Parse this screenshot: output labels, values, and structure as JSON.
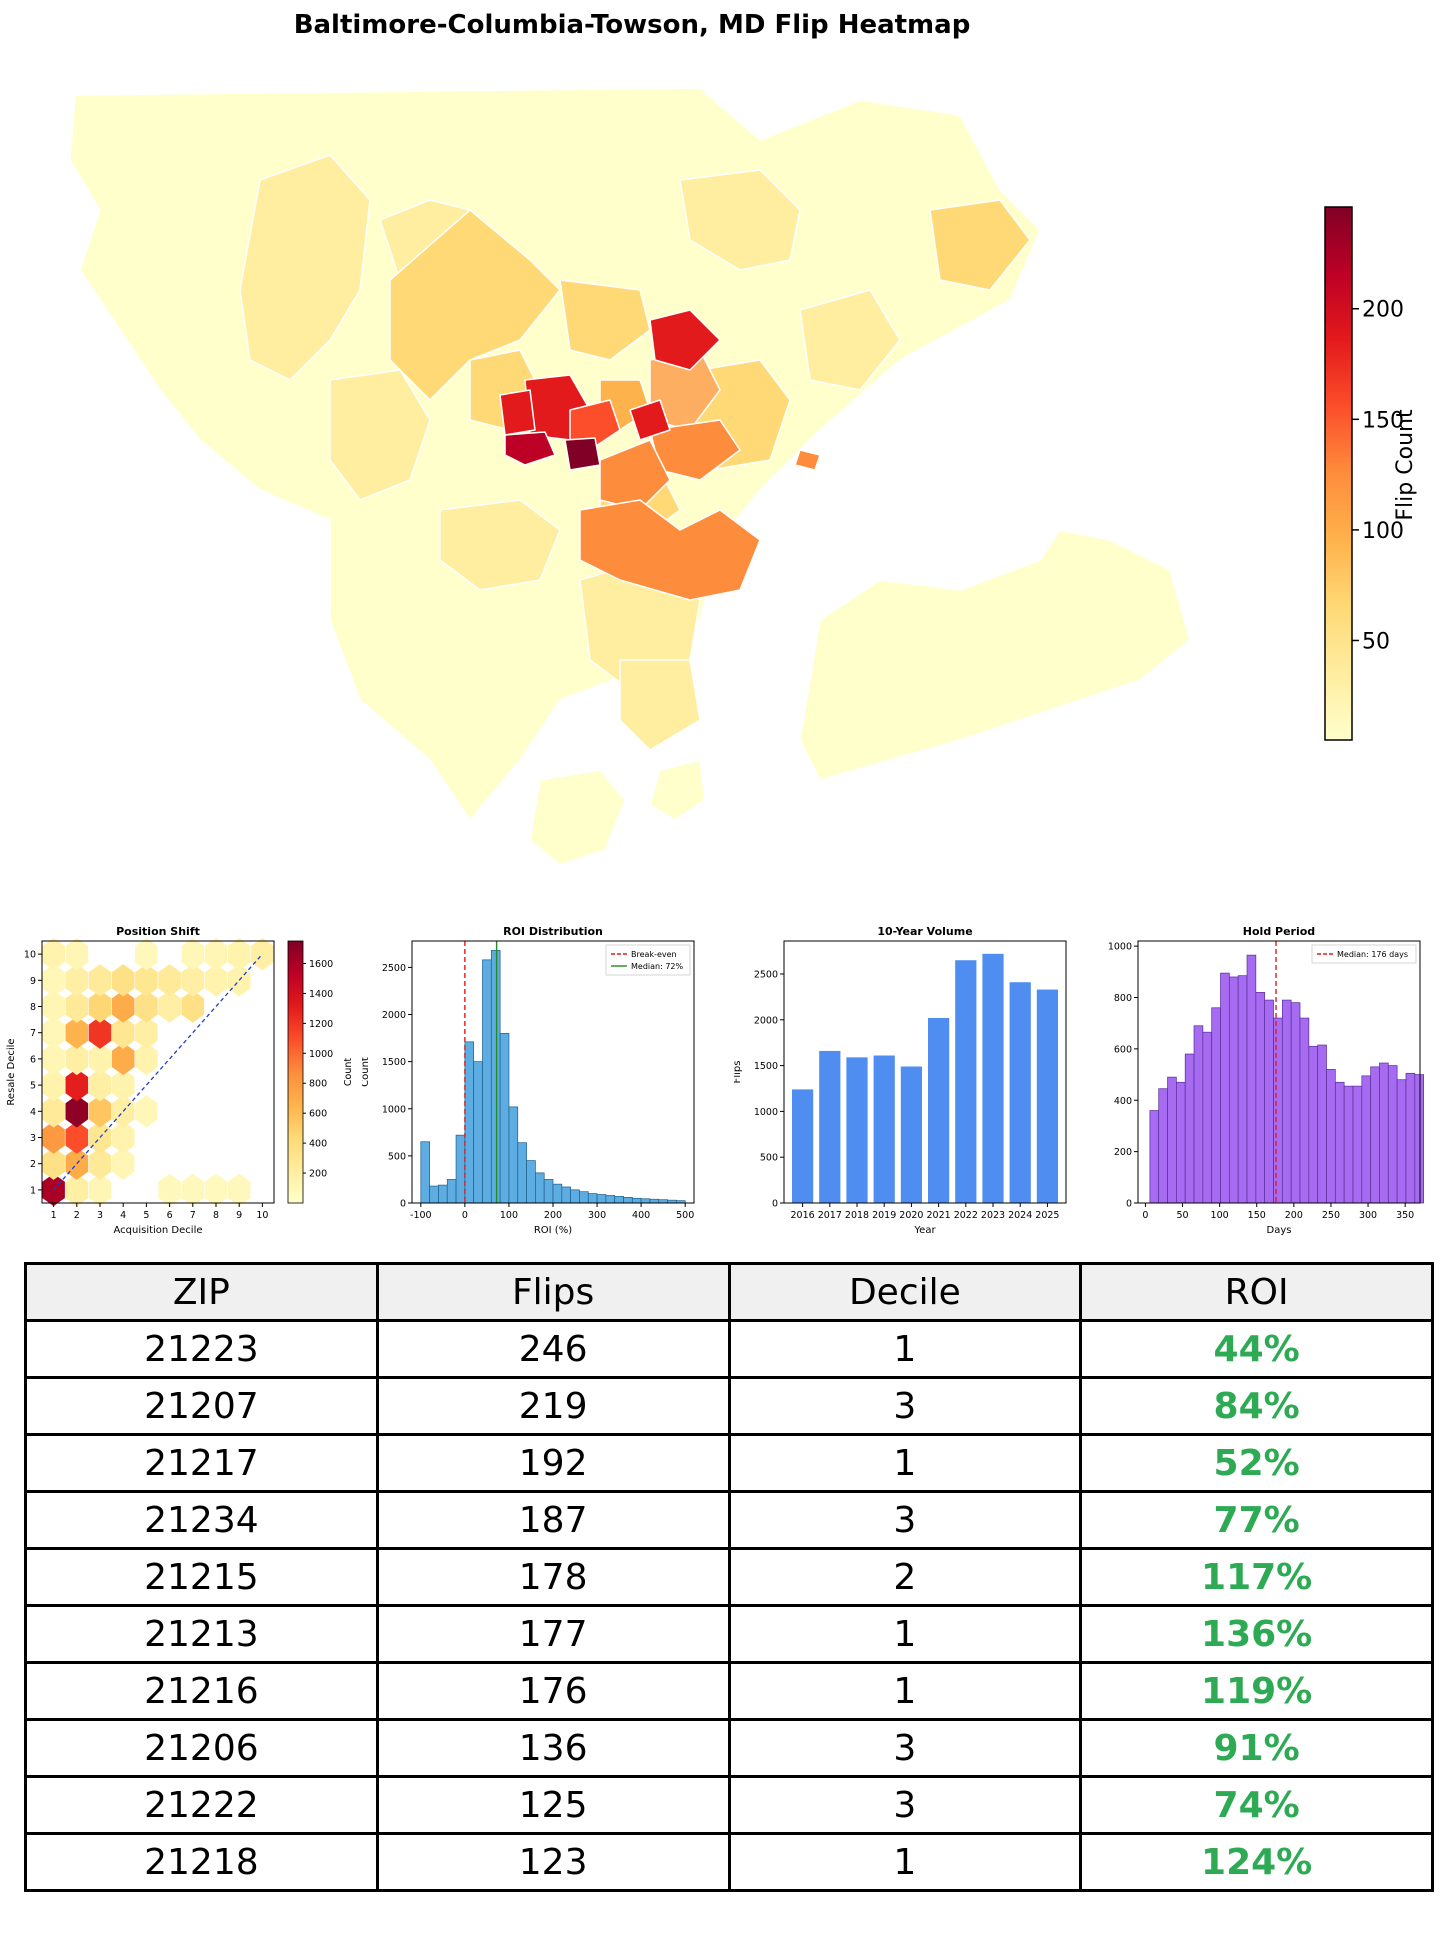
{
  "title": "Baltimore-Columbia-Towson, MD Flip Heatmap",
  "colors": {
    "heat": [
      "#ffffcc",
      "#ffeda0",
      "#fed976",
      "#feb24c",
      "#fd8d3c",
      "#fc4e2a",
      "#e31a1c",
      "#bd0026",
      "#800026"
    ],
    "roi_hist": "#5dade2",
    "volume_bars": "#4f8ef0",
    "hold_bars": "#a66bf0",
    "roi_text": "#2eaa55"
  },
  "map": {
    "colorbar_label": "Flip Count",
    "colorbar_ticks": [
      50,
      100,
      150,
      200
    ],
    "colorbar_range": [
      5,
      246
    ]
  },
  "chart_data": [
    {
      "type": "heatmap",
      "title": "Position Shift",
      "xlabel": "Acquisition Decile",
      "ylabel": "Resale Decile",
      "xlim": [
        0.5,
        10.5
      ],
      "ylim": [
        0.5,
        10.5
      ],
      "xticks": [
        1,
        2,
        3,
        4,
        5,
        6,
        7,
        8,
        9,
        10
      ],
      "yticks": [
        1,
        2,
        3,
        4,
        5,
        6,
        7,
        8,
        9,
        10
      ],
      "colorbar_label": "Count",
      "colorbar_ticks": [
        200,
        400,
        600,
        800,
        1000,
        1200,
        1400,
        1600
      ],
      "colorbar_range": [
        0,
        1750
      ],
      "diagonal": [
        [
          1,
          1
        ],
        [
          10,
          10
        ]
      ],
      "cells": [
        {
          "x": 1,
          "y": 1,
          "v": 1600
        },
        {
          "x": 2,
          "y": 1,
          "v": 200
        },
        {
          "x": 3,
          "y": 1,
          "v": 120
        },
        {
          "x": 6,
          "y": 1,
          "v": 80
        },
        {
          "x": 7,
          "y": 1,
          "v": 80
        },
        {
          "x": 8,
          "y": 1,
          "v": 70
        },
        {
          "x": 9,
          "y": 1,
          "v": 80
        },
        {
          "x": 1,
          "y": 2,
          "v": 350
        },
        {
          "x": 2,
          "y": 2,
          "v": 700
        },
        {
          "x": 3,
          "y": 2,
          "v": 250
        },
        {
          "x": 4,
          "y": 2,
          "v": 120
        },
        {
          "x": 1,
          "y": 3,
          "v": 800
        },
        {
          "x": 2,
          "y": 3,
          "v": 1100
        },
        {
          "x": 3,
          "y": 3,
          "v": 300
        },
        {
          "x": 4,
          "y": 3,
          "v": 150
        },
        {
          "x": 1,
          "y": 4,
          "v": 250
        },
        {
          "x": 2,
          "y": 4,
          "v": 1700
        },
        {
          "x": 3,
          "y": 4,
          "v": 550
        },
        {
          "x": 4,
          "y": 4,
          "v": 200
        },
        {
          "x": 5,
          "y": 4,
          "v": 100
        },
        {
          "x": 1,
          "y": 5,
          "v": 150
        },
        {
          "x": 2,
          "y": 5,
          "v": 1300
        },
        {
          "x": 3,
          "y": 5,
          "v": 200
        },
        {
          "x": 4,
          "y": 5,
          "v": 150
        },
        {
          "x": 1,
          "y": 6,
          "v": 120
        },
        {
          "x": 2,
          "y": 6,
          "v": 200
        },
        {
          "x": 3,
          "y": 6,
          "v": 150
        },
        {
          "x": 4,
          "y": 6,
          "v": 700
        },
        {
          "x": 5,
          "y": 6,
          "v": 150
        },
        {
          "x": 1,
          "y": 7,
          "v": 100
        },
        {
          "x": 2,
          "y": 7,
          "v": 650
        },
        {
          "x": 3,
          "y": 7,
          "v": 1200
        },
        {
          "x": 4,
          "y": 7,
          "v": 300
        },
        {
          "x": 5,
          "y": 7,
          "v": 200
        },
        {
          "x": 1,
          "y": 8,
          "v": 120
        },
        {
          "x": 2,
          "y": 8,
          "v": 250
        },
        {
          "x": 3,
          "y": 8,
          "v": 450
        },
        {
          "x": 4,
          "y": 8,
          "v": 700
        },
        {
          "x": 5,
          "y": 8,
          "v": 350
        },
        {
          "x": 6,
          "y": 8,
          "v": 200
        },
        {
          "x": 7,
          "y": 8,
          "v": 350
        },
        {
          "x": 1,
          "y": 9,
          "v": 100
        },
        {
          "x": 2,
          "y": 9,
          "v": 200
        },
        {
          "x": 3,
          "y": 9,
          "v": 250
        },
        {
          "x": 4,
          "y": 9,
          "v": 350
        },
        {
          "x": 5,
          "y": 9,
          "v": 300
        },
        {
          "x": 6,
          "y": 9,
          "v": 250
        },
        {
          "x": 7,
          "y": 9,
          "v": 200
        },
        {
          "x": 8,
          "y": 9,
          "v": 150
        },
        {
          "x": 9,
          "y": 9,
          "v": 150
        },
        {
          "x": 1,
          "y": 10,
          "v": 150
        },
        {
          "x": 2,
          "y": 10,
          "v": 120
        },
        {
          "x": 5,
          "y": 10,
          "v": 80
        },
        {
          "x": 7,
          "y": 10,
          "v": 100
        },
        {
          "x": 8,
          "y": 10,
          "v": 120
        },
        {
          "x": 9,
          "y": 10,
          "v": 150
        },
        {
          "x": 10,
          "y": 10,
          "v": 200
        }
      ]
    },
    {
      "type": "bar",
      "title": "ROI Distribution",
      "xlabel": "ROI (%)",
      "ylabel": "Count",
      "xlim": [
        -120,
        520
      ],
      "ylim": [
        0,
        2780
      ],
      "xticks": [
        -100,
        0,
        100,
        200,
        300,
        400,
        500
      ],
      "yticks": [
        0,
        500,
        1000,
        1500,
        2000,
        2500
      ],
      "bin_width": 20,
      "bins_start": -100,
      "values": [
        650,
        180,
        190,
        250,
        720,
        1710,
        1500,
        2580,
        2680,
        1800,
        1020,
        640,
        450,
        320,
        250,
        200,
        170,
        140,
        120,
        100,
        90,
        80,
        70,
        60,
        50,
        45,
        40,
        35,
        30,
        25
      ],
      "reference_lines": [
        {
          "x": 0,
          "name": "Break-even",
          "color": "#e41a1c",
          "style": "dashed"
        },
        {
          "x": 72,
          "name": "Median: 72%",
          "color": "#228b22",
          "style": "solid"
        }
      ],
      "legend_position": "top-right"
    },
    {
      "type": "bar",
      "title": "10-Year Volume",
      "xlabel": "Year",
      "ylabel": "Flips",
      "ylim": [
        0,
        2860
      ],
      "yticks": [
        0,
        500,
        1000,
        1500,
        2000,
        2500
      ],
      "categories": [
        "2016",
        "2017",
        "2018",
        "2019",
        "2020",
        "2021",
        "2022",
        "2023",
        "2024",
        "2025"
      ],
      "values": [
        1240,
        1660,
        1590,
        1610,
        1490,
        2020,
        2650,
        2720,
        2410,
        2330
      ]
    },
    {
      "type": "bar",
      "title": "Hold Period",
      "xlabel": "Days",
      "ylabel": "Count",
      "xlim": [
        -10,
        370
      ],
      "ylim": [
        0,
        1020
      ],
      "xticks": [
        0,
        50,
        100,
        150,
        200,
        250,
        300,
        350
      ],
      "yticks": [
        0,
        200,
        400,
        600,
        800,
        1000
      ],
      "bin_width": 11.9,
      "bins_start": 6,
      "values": [
        360,
        445,
        490,
        470,
        580,
        690,
        665,
        760,
        895,
        880,
        885,
        965,
        820,
        790,
        720,
        790,
        780,
        720,
        610,
        615,
        520,
        470,
        455,
        455,
        495,
        530,
        545,
        535,
        480,
        505,
        500
      ],
      "reference_lines": [
        {
          "x": 176,
          "name": "Median: 176 days",
          "color": "#e41a1c",
          "style": "dashed"
        }
      ],
      "legend_position": "top-right"
    }
  ],
  "table": {
    "headers": [
      "ZIP",
      "Flips",
      "Decile",
      "ROI"
    ],
    "rows": [
      [
        "21223",
        "246",
        "1",
        "44%"
      ],
      [
        "21207",
        "219",
        "3",
        "84%"
      ],
      [
        "21217",
        "192",
        "1",
        "52%"
      ],
      [
        "21234",
        "187",
        "3",
        "77%"
      ],
      [
        "21215",
        "178",
        "2",
        "117%"
      ],
      [
        "21213",
        "177",
        "1",
        "136%"
      ],
      [
        "21216",
        "176",
        "1",
        "119%"
      ],
      [
        "21206",
        "136",
        "3",
        "91%"
      ],
      [
        "21222",
        "125",
        "3",
        "74%"
      ],
      [
        "21218",
        "123",
        "1",
        "124%"
      ]
    ]
  }
}
